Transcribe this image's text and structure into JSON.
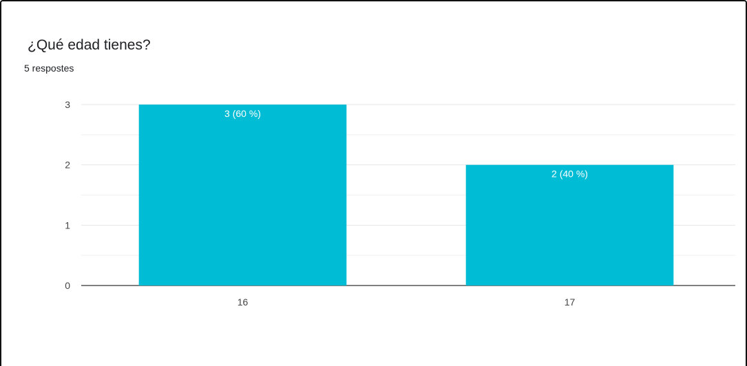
{
  "question": {
    "title": "¿Qué edad tienes?",
    "responses": "5 respostes"
  },
  "chart_data": {
    "type": "bar",
    "categories": [
      "16",
      "17"
    ],
    "values": [
      3,
      2
    ],
    "data_labels": [
      "3 (60 %)",
      "2 (40 %)"
    ],
    "yticks": [
      "0",
      "1",
      "2",
      "3"
    ],
    "ylim": [
      0,
      3
    ],
    "grid": true,
    "legend": "none",
    "bar_color": "#00bcd4",
    "grid_color": "#e6e6e6",
    "axis_color": "#333333"
  }
}
